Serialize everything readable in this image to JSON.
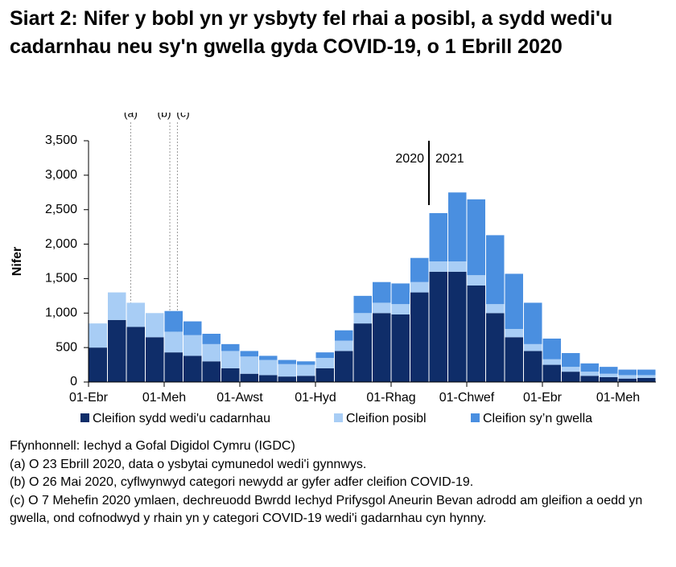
{
  "chart_data": {
    "type": "stacked-bar",
    "title": "Siart 2: Nifer y bobl yn yr ysbyty fel rhai a posibl, a sydd wedi'u cadarnhau neu sy'n gwella gyda COVID-19, o 1 Ebrill 2020",
    "y_label": "Nifer",
    "categories": [
      "01-Ebr",
      null,
      null,
      null,
      "01-Meh",
      null,
      null,
      null,
      "01-Awst",
      null,
      null,
      null,
      "01-Hyd",
      null,
      null,
      null,
      "01-Rhag",
      null,
      null,
      null,
      "01-Chwef",
      null,
      null,
      null,
      "01-Ebr",
      null,
      null,
      null,
      "01-Meh",
      null
    ],
    "series": [
      {
        "name": "Cleifion sydd wedi'u cadarnhau",
        "color": "#0f2d69",
        "values": [
          500,
          900,
          800,
          650,
          430,
          380,
          300,
          200,
          120,
          100,
          80,
          90,
          200,
          450,
          850,
          1000,
          980,
          1300,
          1600,
          1600,
          1400,
          1000,
          650,
          450,
          250,
          150,
          90,
          70,
          50,
          60
        ]
      },
      {
        "name": "Cleifion posibl",
        "color": "#a8cdf5",
        "values": [
          350,
          400,
          350,
          350,
          300,
          300,
          250,
          250,
          250,
          220,
          180,
          160,
          150,
          150,
          150,
          150,
          150,
          150,
          150,
          150,
          150,
          130,
          120,
          100,
          80,
          70,
          60,
          50,
          50,
          40
        ]
      },
      {
        "name": "Cleifion sy’n gwella",
        "color": "#4a8fe0",
        "values": [
          0,
          0,
          0,
          0,
          300,
          200,
          150,
          100,
          80,
          60,
          60,
          50,
          80,
          150,
          250,
          300,
          300,
          350,
          700,
          1000,
          1100,
          1000,
          800,
          600,
          300,
          200,
          120,
          100,
          80,
          80
        ]
      }
    ],
    "ylim": [
      0,
      3500
    ],
    "yticks": [
      0,
      500,
      {
        "value": 1000,
        "label": "1,000"
      },
      {
        "value": 1500,
        "label": "1,500"
      },
      {
        "value": 2000,
        "label": "2,000"
      },
      {
        "value": 2500,
        "label": "2,500"
      },
      {
        "value": 3000,
        "label": "3,000"
      },
      {
        "value": 3500,
        "label": "3,500"
      }
    ],
    "annotations": [
      "(a)",
      "(b)",
      "(c)"
    ],
    "year_labels": [
      "2020",
      "2021"
    ],
    "legend": "bottom",
    "notes": [
      "Ffynhonnell: Iechyd a Gofal Digidol Cymru (IGDC)",
      "(a) O 23 Ebrill 2020, data o ysbytai cymunedol wedi'i gynnwys.",
      "(b) O 26 Mai 2020, cyflwynwyd categori newydd ar gyfer adfer cleifion COVID-19.",
      "(c) O 7 Mehefin 2020 ymlaen, dechreuodd Bwrdd Iechyd Prifysgol Aneurin Bevan adrodd am gleifion a oedd yn gwella, ond cofnodwyd y rhain yn y categori COVID-19 wedi'i gadarnhau cyn hynny."
    ]
  }
}
